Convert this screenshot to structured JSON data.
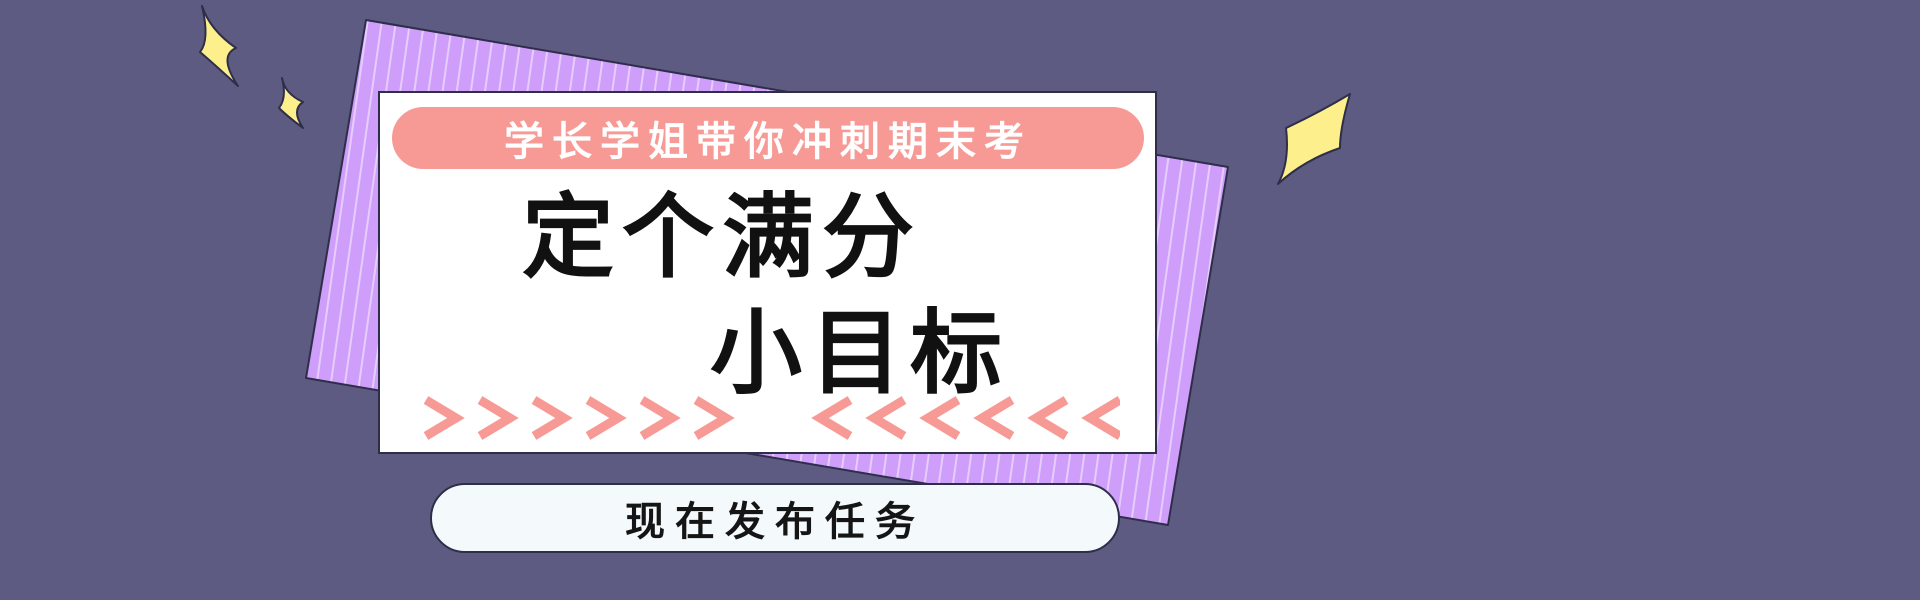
{
  "banner": {
    "subtitle": "学长学姐带你冲刺期末考",
    "headline_line1": "定个满分",
    "headline_line2": "小目标",
    "cta_label": "现在发布任务"
  },
  "colors": {
    "background": "#5d5b82",
    "purple_card": "#cf9dfa",
    "pink": "#f79a95",
    "sparkle": "#fdf08c",
    "cta_fill": "#f4fafc",
    "outline": "#2e2e4a"
  },
  "decor": {
    "chevron_right_count": 6,
    "chevron_left_count": 6,
    "chevron_right_icon": "chevron-right-icon",
    "chevron_left_icon": "chevron-left-icon",
    "sparkle_icon": "sparkle-icon"
  }
}
